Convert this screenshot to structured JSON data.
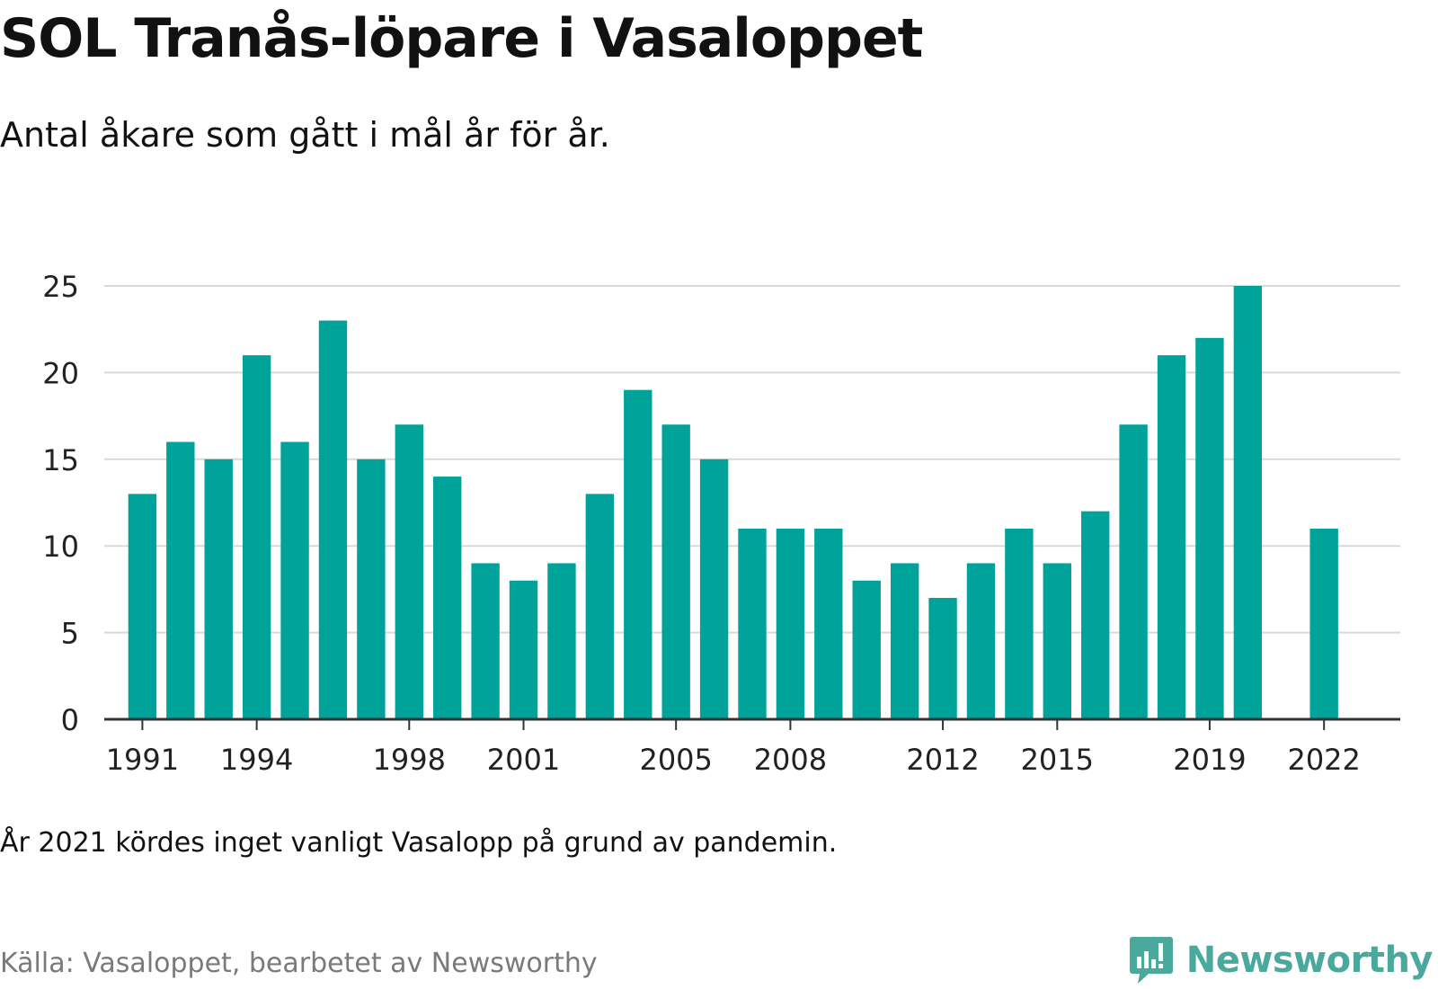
{
  "header": {
    "title": "SOL Tranås-löpare i Vasaloppet",
    "subtitle": "Antal åkare som gått i mål år för år."
  },
  "footer": {
    "note": "År 2021 kördes inget vanligt Vasalopp på grund av pandemin.",
    "source": "Källa: Vasaloppet, bearbetet av Newsworthy",
    "brand": "Newsworthy"
  },
  "colors": {
    "bar": "#00a39a",
    "grid": "#d9d9d9",
    "axis": "#333333",
    "brand": "#4aa89d"
  },
  "chart_data": {
    "type": "bar",
    "title": "SOL Tranås-löpare i Vasaloppet",
    "subtitle": "Antal åkare som gått i mål år för år.",
    "x": [
      1991,
      1992,
      1993,
      1994,
      1995,
      1996,
      1997,
      1998,
      1999,
      2000,
      2001,
      2002,
      2003,
      2004,
      2005,
      2006,
      2007,
      2008,
      2009,
      2010,
      2011,
      2012,
      2013,
      2014,
      2015,
      2016,
      2017,
      2018,
      2019,
      2020,
      2022
    ],
    "values": [
      13,
      16,
      15,
      21,
      16,
      23,
      15,
      17,
      14,
      9,
      8,
      9,
      13,
      19,
      17,
      15,
      11,
      11,
      11,
      8,
      9,
      7,
      9,
      11,
      9,
      12,
      17,
      21,
      22,
      25,
      11
    ],
    "xlabel": "",
    "ylabel": "",
    "ylim": [
      0,
      25
    ],
    "yticks": [
      0,
      5,
      10,
      15,
      20,
      25
    ],
    "xticks": [
      1991,
      1994,
      1998,
      2001,
      2005,
      2008,
      2012,
      2015,
      2019,
      2022
    ],
    "xlim": [
      1990,
      2024
    ],
    "grid": true,
    "legend": "none"
  }
}
